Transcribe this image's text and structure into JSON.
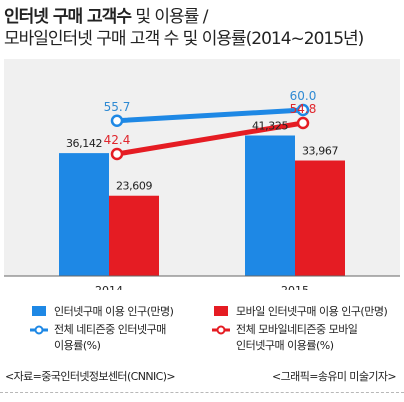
{
  "title": {
    "line1_bold": "인터넷 구매 고객수",
    "line1_light": " 및 이용률 /",
    "line2": "모바일인터넷 구매 고객 수 및 이용률(2014~2015년)"
  },
  "colors": {
    "blue": "#1e88e5",
    "red": "#e51c23",
    "band": "#f0f0f0",
    "axis": "#666666",
    "blue_label": "#2f8ad3",
    "red_label": "#e0262d"
  },
  "chart_data": {
    "type": "bar",
    "categories": [
      "2014",
      "2015"
    ],
    "bar_series": [
      {
        "name": "인터넷구매 이용 인구(만명)",
        "values": [
          36142,
          41325
        ],
        "value_labels": [
          "36,142",
          "41,325"
        ],
        "color": "#1e88e5"
      },
      {
        "name": "모바일 인터넷구매 이용 인구(만명)",
        "values": [
          23609,
          33967
        ],
        "value_labels": [
          "23,609",
          "33,967"
        ],
        "color": "#e51c23"
      }
    ],
    "line_series": [
      {
        "name": "전체 네티즌중 인터넷구매 이용률(%)",
        "values": [
          55.7,
          60.0
        ],
        "value_labels": [
          "55.7",
          "60.0"
        ],
        "color": "#1e88e5"
      },
      {
        "name": "전체 모바일네티즌중 모바일 인터넷구매 이용률(%)",
        "values": [
          42.4,
          54.8
        ],
        "value_labels": [
          "42.4",
          "54.8"
        ],
        "color": "#e51c23"
      }
    ],
    "bar_ylim": [
      0,
      50000
    ],
    "line_ylim": [
      0,
      100
    ],
    "grid": false
  },
  "legend": [
    {
      "kind": "bar",
      "color": "#1e88e5",
      "label": "인터넷구매 이용 인구(만명)"
    },
    {
      "kind": "bar",
      "color": "#e51c23",
      "label": "모바일 인터넷구매 이용 인구(만명)"
    },
    {
      "kind": "line",
      "color": "#1e88e5",
      "label_line1": "전체 네티즌중 인터넷구매",
      "label_line2": "이용률(%)"
    },
    {
      "kind": "line",
      "color": "#e51c23",
      "label_line1": "전체 모바일네티즌중 모바일",
      "label_line2": "인터넷구매 이용률(%)"
    }
  ],
  "footer": {
    "source": "<자료=중국인터넷정보센터(CNNIC)>",
    "credit": "<그래픽=송유미 미술기자>"
  }
}
